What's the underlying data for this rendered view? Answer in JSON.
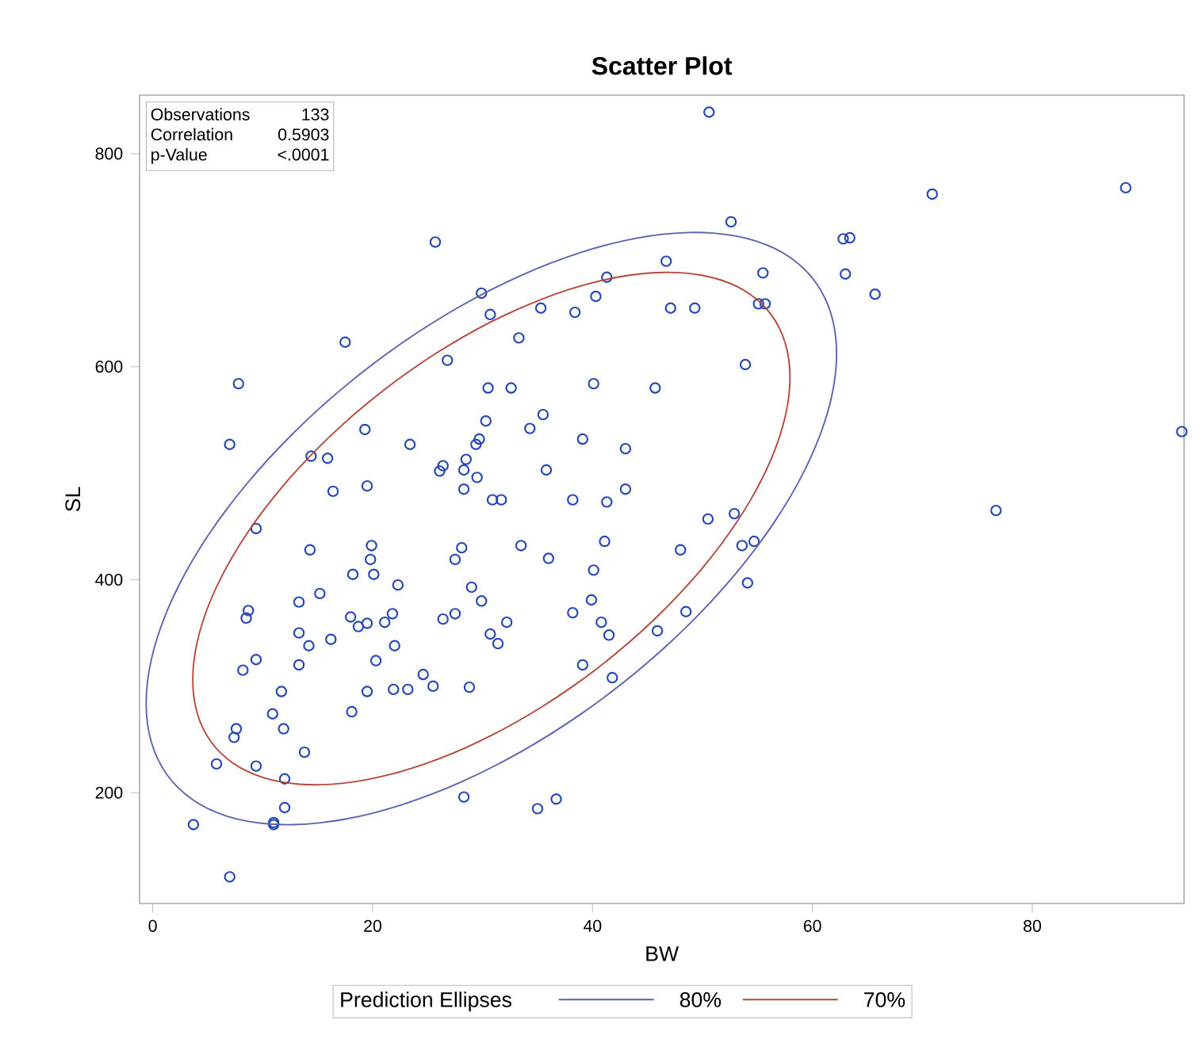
{
  "chart_data": {
    "type": "scatter",
    "title": "Scatter Plot",
    "xlabel": "BW",
    "ylabel": "SL",
    "legend_title": "Prediction Ellipses",
    "marker": "circle",
    "annotations": [
      "Observations",
      "133",
      "Correlation",
      "0.5903",
      "p-Value",
      "<.0001",
      "80%",
      "70%"
    ],
    "xlim": [
      -1.2,
      93.8
    ],
    "ylim": [
      96,
      855
    ],
    "xticks": [
      0,
      20,
      40,
      60,
      80
    ],
    "yticks": [
      200,
      400,
      600,
      800
    ],
    "series": [
      {
        "color": "#2346b8",
        "x": [
          50.6,
          52.6,
          70.9,
          88.5,
          25.7,
          62.8,
          63.4,
          55.5,
          63.0,
          29.9,
          46.7,
          65.7,
          41.3,
          40.3,
          55.1,
          55.7,
          35.3,
          38.4,
          47.1,
          49.3,
          53.9,
          40.1,
          45.7,
          35.5,
          34.3,
          39.1,
          43.0,
          35.8,
          43.0,
          30.7,
          33.3,
          17.5,
          26.8,
          7.8,
          30.5,
          32.6,
          30.3,
          19.3,
          7.0,
          23.4,
          29.7,
          29.4,
          14.4,
          15.9,
          28.5,
          26.4,
          26.1,
          28.3,
          29.5,
          19.5,
          16.4,
          28.3,
          30.9,
          31.7,
          9.4,
          14.3,
          19.9,
          19.8,
          20.1,
          18.2,
          22.3,
          28.1,
          27.5,
          33.5,
          29.0,
          29.9,
          32.2,
          30.7,
          31.4,
          13.3,
          15.2,
          8.7,
          8.5,
          18.0,
          18.7,
          19.5,
          21.1,
          21.8,
          26.4,
          27.5,
          13.3,
          14.2,
          16.2,
          22.0,
          8.2,
          9.4,
          13.3,
          20.3,
          11.7,
          19.5,
          21.9,
          23.2,
          24.6,
          25.5,
          28.8,
          18.1,
          10.9,
          11.9,
          7.6,
          7.4,
          13.8,
          5.8,
          9.4,
          12.0,
          12.0,
          11.0,
          11.0,
          3.7,
          28.3,
          7.0,
          38.2,
          41.3,
          50.5,
          52.9,
          41.1,
          48.0,
          53.6,
          54.7,
          36.0,
          40.1,
          54.1,
          39.9,
          38.2,
          40.8,
          41.5,
          48.5,
          45.9,
          39.1,
          41.8,
          35.0,
          36.7,
          93.6,
          76.7
        ],
        "values": [
          839,
          736,
          762,
          768,
          717,
          720,
          721,
          688,
          687,
          669,
          699,
          668,
          684,
          666,
          659,
          659,
          655,
          651,
          655,
          655,
          602,
          584,
          580,
          555,
          542,
          532,
          523,
          503,
          485,
          649,
          627,
          623,
          606,
          584,
          580,
          580,
          549,
          541,
          527,
          527,
          532,
          527,
          516,
          514,
          513,
          507,
          502,
          503,
          496,
          488,
          483,
          485,
          475,
          475,
          448,
          428,
          432,
          419,
          405,
          405,
          395,
          430,
          419,
          432,
          393,
          380,
          360,
          349,
          340,
          379,
          387,
          371,
          364,
          365,
          356,
          359,
          360,
          368,
          363,
          368,
          350,
          338,
          344,
          338,
          315,
          325,
          320,
          324,
          295,
          295,
          297,
          297,
          311,
          300,
          299,
          276,
          274,
          260,
          260,
          252,
          238,
          227,
          225,
          213,
          186,
          172,
          170,
          170,
          196,
          121,
          475,
          473,
          457,
          462,
          436,
          428,
          432,
          436,
          420,
          409,
          397,
          381,
          369,
          360,
          348,
          370,
          352,
          320,
          308,
          185,
          194,
          539,
          465
        ]
      }
    ]
  }
}
